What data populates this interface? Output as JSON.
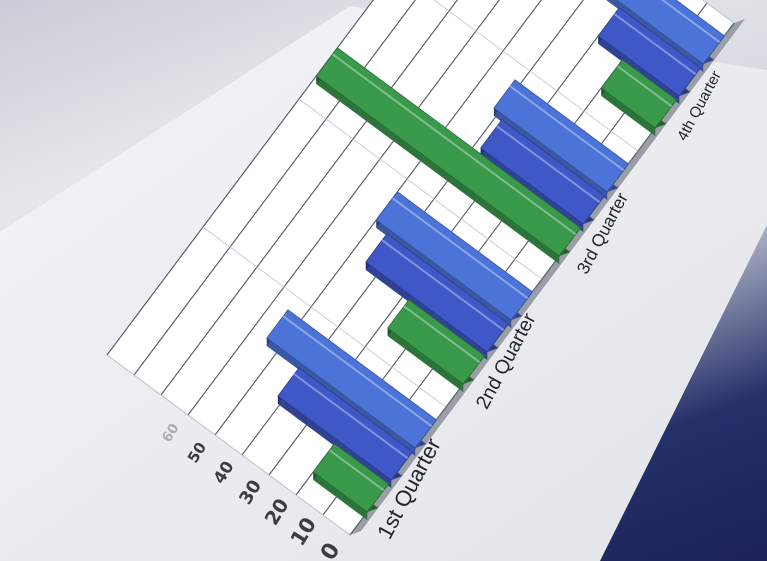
{
  "chart_data": {
    "type": "bar",
    "orientation": "horizontal",
    "style": "3d",
    "categories": [
      "1st Quarter",
      "2nd Quarter",
      "3rd Quarter",
      "4th Quarter"
    ],
    "series": [
      {
        "values": [
          20,
          28,
          90,
          20
        ],
        "color": "#3a9a4c"
      },
      {
        "values": [
          42,
          45,
          38,
          30
        ],
        "color": "#3f58c8"
      },
      {
        "values": [
          55,
          50,
          42,
          36
        ],
        "color": "#4c74d8"
      }
    ],
    "ticks": [
      "0",
      "10",
      "20",
      "30",
      "40",
      "50",
      "60"
    ],
    "xlim": [
      0,
      90
    ],
    "grid": true
  }
}
